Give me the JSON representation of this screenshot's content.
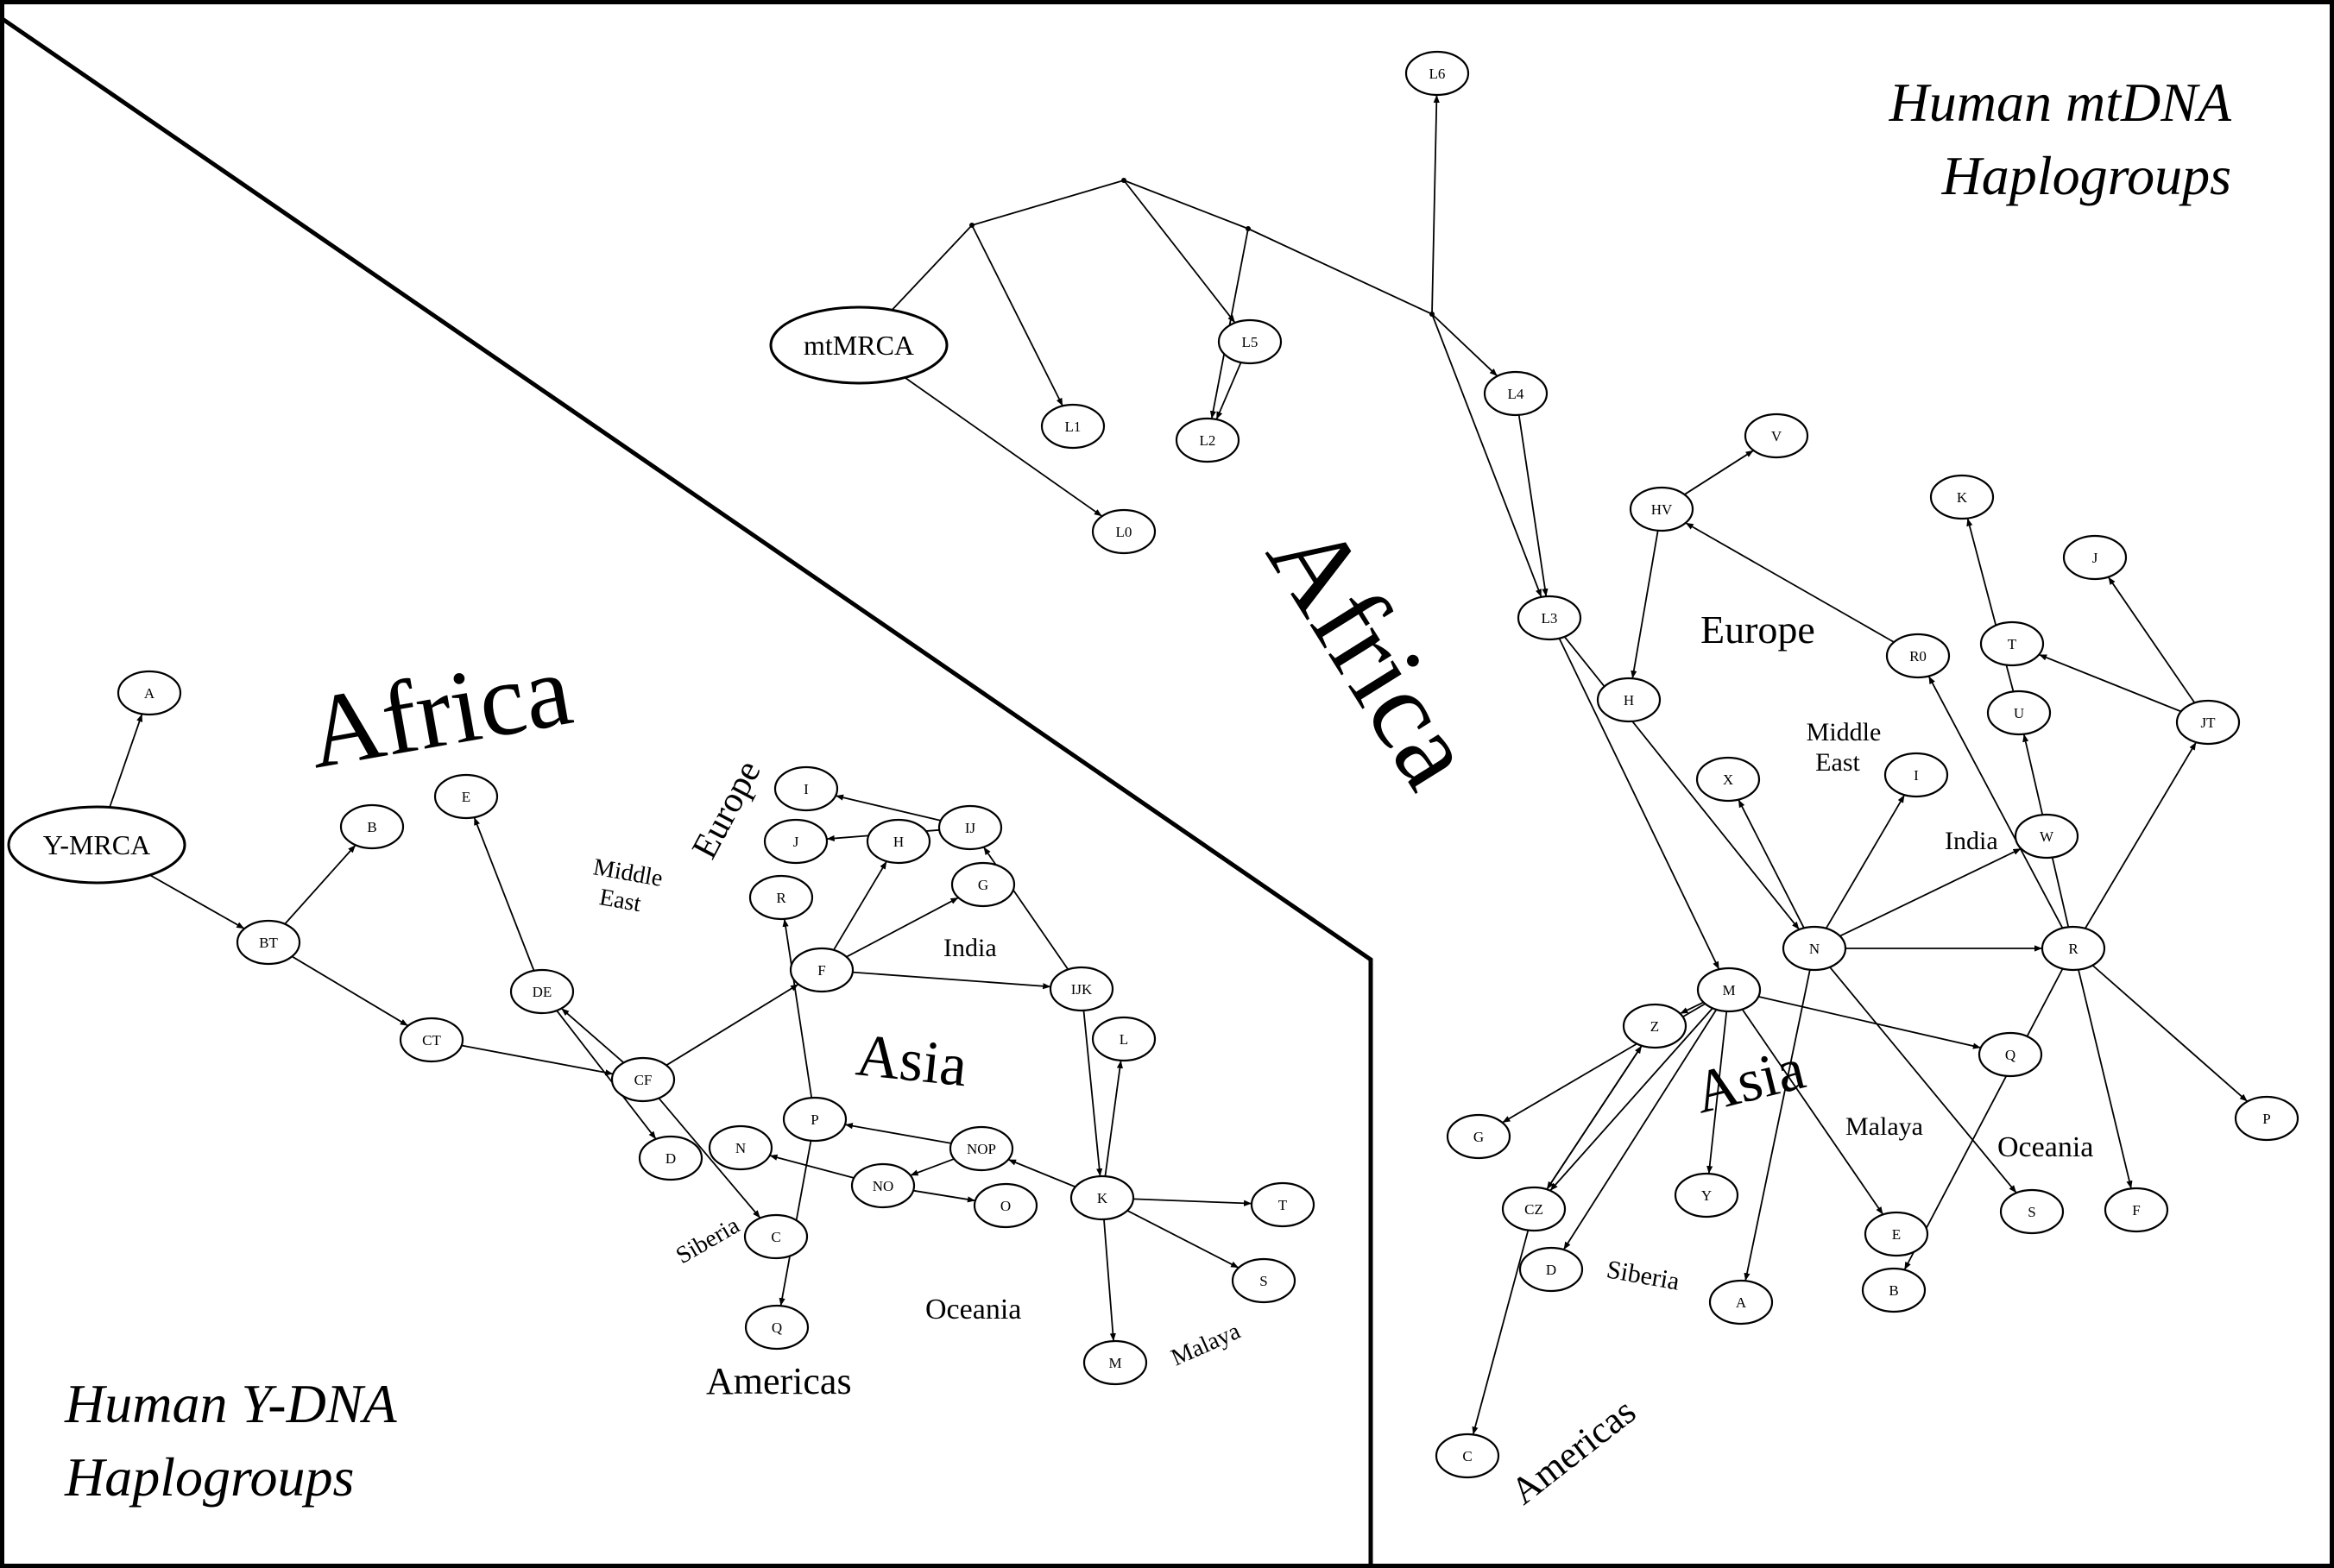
{
  "mtdna": {
    "title_line1": "Human mtDNA",
    "title_line2": "Haplogroups",
    "root_label": "mtMRCA",
    "nodes": [
      "L6",
      "L5",
      "L1",
      "L2",
      "L0",
      "L4",
      "L3",
      "HV",
      "V",
      "H",
      "R0",
      "K",
      "J",
      "T",
      "U",
      "JT",
      "X",
      "I",
      "W",
      "N",
      "R",
      "M",
      "Z",
      "Q",
      "P",
      "G",
      "CZ",
      "Y",
      "E",
      "S",
      "F",
      "D",
      "A",
      "B",
      "C"
    ],
    "edges": [
      [
        "mtMRCA",
        "L0"
      ],
      [
        "L5",
        "L2"
      ],
      [
        "L4",
        "L3"
      ],
      [
        "L3",
        "N"
      ],
      [
        "L3",
        "M"
      ],
      [
        "HV",
        "V"
      ],
      [
        "HV",
        "H"
      ],
      [
        "R0",
        "HV"
      ],
      [
        "U",
        "K"
      ],
      [
        "JT",
        "J"
      ],
      [
        "JT",
        "T"
      ],
      [
        "R",
        "U"
      ],
      [
        "R",
        "JT"
      ],
      [
        "R",
        "R0"
      ],
      [
        "R",
        "P"
      ],
      [
        "R",
        "F"
      ],
      [
        "R",
        "B"
      ],
      [
        "N",
        "X"
      ],
      [
        "N",
        "I"
      ],
      [
        "N",
        "W"
      ],
      [
        "N",
        "R"
      ],
      [
        "N",
        "S"
      ],
      [
        "N",
        "A"
      ],
      [
        "M",
        "Z"
      ],
      [
        "M",
        "G"
      ],
      [
        "M",
        "Q"
      ],
      [
        "M",
        "E"
      ],
      [
        "M",
        "Y"
      ],
      [
        "M",
        "D"
      ],
      [
        "M",
        "CZ"
      ],
      [
        "CZ",
        "Z"
      ],
      [
        "Z",
        "CZ"
      ],
      [
        "CZ",
        "C"
      ]
    ],
    "regions": {
      "africa": "Africa",
      "europe": "Europe",
      "middle_east_1": "Middle",
      "middle_east_2": "East",
      "india": "India",
      "asia": "Asia",
      "malaya": "Malaya",
      "oceania": "Oceania",
      "siberia": "Siberia",
      "americas": "Americas"
    }
  },
  "ydna": {
    "title_line1": "Human Y-DNA",
    "title_line2": "Haplogroups",
    "root_label": "Y-MRCA",
    "nodes": [
      "A",
      "B",
      "BT",
      "CT",
      "E",
      "DE",
      "CF",
      "D",
      "C",
      "F",
      "G",
      "H",
      "IJ",
      "I",
      "J",
      "R",
      "IJK",
      "L",
      "K",
      "P",
      "NOP",
      "NO",
      "N",
      "O",
      "Q",
      "M",
      "S",
      "T"
    ],
    "edges": [
      [
        "Y-MRCA",
        "A"
      ],
      [
        "Y-MRCA",
        "BT"
      ],
      [
        "BT",
        "B"
      ],
      [
        "BT",
        "CT"
      ],
      [
        "CT",
        "CF"
      ],
      [
        "DE",
        "E"
      ],
      [
        "DE",
        "D"
      ],
      [
        "CF",
        "DE"
      ],
      [
        "CF",
        "C"
      ],
      [
        "CF",
        "F"
      ],
      [
        "F",
        "H"
      ],
      [
        "F",
        "G"
      ],
      [
        "F",
        "IJK"
      ],
      [
        "IJ",
        "I"
      ],
      [
        "IJ",
        "J"
      ],
      [
        "IJK",
        "IJ"
      ],
      [
        "IJK",
        "K"
      ],
      [
        "K",
        "L"
      ],
      [
        "K",
        "NOP"
      ],
      [
        "K",
        "T"
      ],
      [
        "K",
        "S"
      ],
      [
        "K",
        "M"
      ],
      [
        "NOP",
        "P"
      ],
      [
        "NOP",
        "NO"
      ],
      [
        "NO",
        "N"
      ],
      [
        "NO",
        "O"
      ],
      [
        "P",
        "R"
      ],
      [
        "P",
        "Q"
      ]
    ],
    "regions": {
      "africa": "Africa",
      "europe": "Europe",
      "middle_east_1": "Middle",
      "middle_east_2": "East",
      "india": "India",
      "asia": "Asia",
      "siberia": "Siberia",
      "oceania": "Oceania",
      "malaya": "Malaya",
      "americas": "Americas"
    }
  }
}
